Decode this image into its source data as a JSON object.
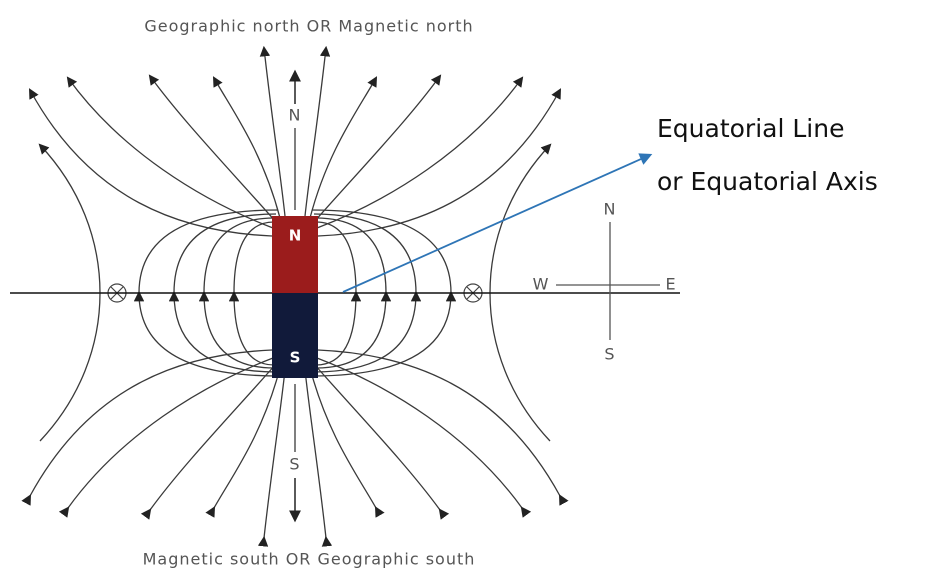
{
  "top_label": "Geographic north OR Magnetic north",
  "bottom_label": "Magnetic south OR Geographic south",
  "axis_labels": {
    "north": "N",
    "south": "S"
  },
  "magnet": {
    "north": "N",
    "south": "S"
  },
  "annotation": {
    "lines": [
      "Equatorial Line",
      "or Equatorial Axis"
    ]
  },
  "compass": {
    "north": "N",
    "west": "W",
    "east": "E",
    "south": "S"
  }
}
